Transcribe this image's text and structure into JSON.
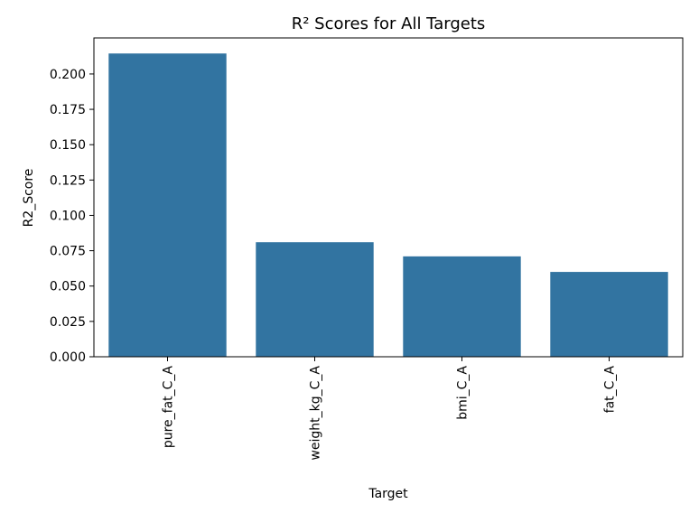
{
  "chart_data": {
    "type": "bar",
    "title": "R² Scores for All Targets",
    "xlabel": "Target",
    "ylabel": "R2_Score",
    "categories": [
      "pure_fat_C_A",
      "weight_kg_C_A",
      "bmi_C_A",
      "fat_C_A"
    ],
    "values": [
      0.2145,
      0.081,
      0.071,
      0.06
    ],
    "ylim": [
      0,
      0.2255
    ],
    "yticks": [
      "0.000",
      "0.025",
      "0.050",
      "0.075",
      "0.100",
      "0.125",
      "0.150",
      "0.175",
      "0.200"
    ],
    "grid": false,
    "bar_color": "#3274a1"
  }
}
